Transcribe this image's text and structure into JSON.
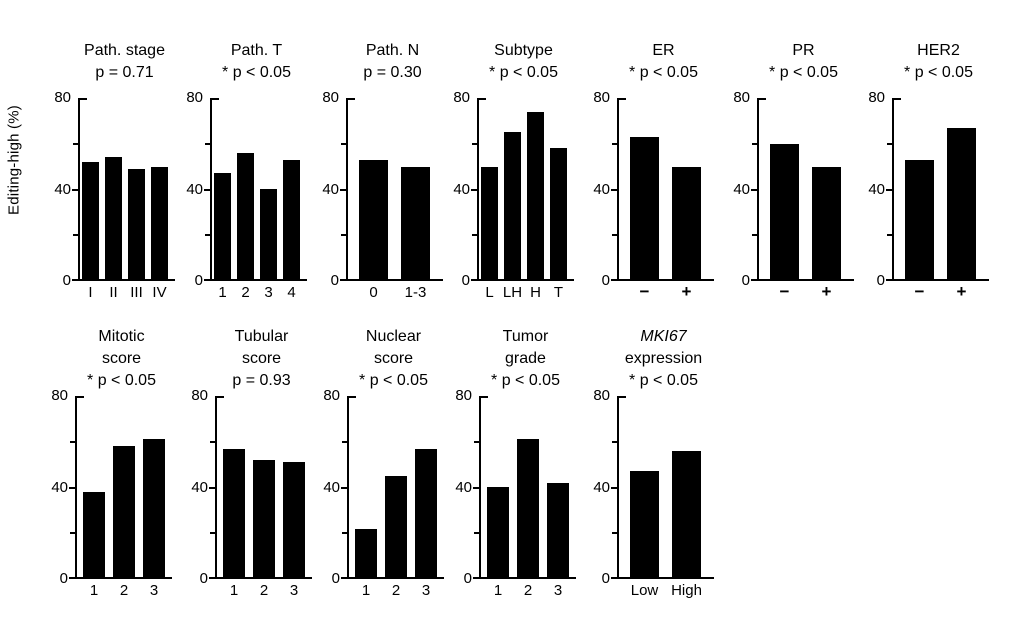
{
  "figure": {
    "background": "#ffffff",
    "bar_color": "#000000",
    "axis_color": "#000000",
    "text_color": "#000000"
  },
  "chart_data": {
    "type": "bar",
    "ylabel": "Editing-high (%)",
    "ylim": [
      0,
      80
    ],
    "yticks": [
      0,
      40,
      80
    ],
    "minor_yticks": [
      20,
      60
    ],
    "grid": false,
    "legend": "none",
    "panels": [
      {
        "id": "path-stage",
        "row": 1,
        "title_lines": [
          "Path. stage"
        ],
        "p_label": "p = 0.71",
        "significant": false,
        "categories": [
          "I",
          "II",
          "III",
          "IV"
        ],
        "values": [
          52,
          54,
          49,
          50
        ]
      },
      {
        "id": "path-t",
        "row": 1,
        "title_lines": [
          "Path. T"
        ],
        "p_label": "* p < 0.05",
        "significant": true,
        "categories": [
          "1",
          "2",
          "3",
          "4"
        ],
        "values": [
          47,
          56,
          40,
          53
        ]
      },
      {
        "id": "path-n",
        "row": 1,
        "title_lines": [
          "Path. N"
        ],
        "p_label": "p = 0.30",
        "significant": false,
        "categories": [
          "0",
          "1-3"
        ],
        "values": [
          53,
          50
        ]
      },
      {
        "id": "subtype",
        "row": 1,
        "title_lines": [
          "Subtype"
        ],
        "p_label": "* p < 0.05",
        "significant": true,
        "categories": [
          "L",
          "LH",
          "H",
          "T"
        ],
        "values": [
          50,
          65,
          74,
          58
        ]
      },
      {
        "id": "er",
        "row": 1,
        "title_lines": [
          "ER"
        ],
        "p_label": "* p < 0.05",
        "significant": true,
        "categories": [
          "−",
          "+"
        ],
        "categories_bold": true,
        "values": [
          63,
          50
        ]
      },
      {
        "id": "pr",
        "row": 1,
        "title_lines": [
          "PR"
        ],
        "p_label": "* p < 0.05",
        "significant": true,
        "categories": [
          "−",
          "+"
        ],
        "categories_bold": true,
        "values": [
          60,
          50
        ]
      },
      {
        "id": "her2",
        "row": 1,
        "title_lines": [
          "HER2"
        ],
        "p_label": "* p < 0.05",
        "significant": true,
        "categories": [
          "−",
          "+"
        ],
        "categories_bold": true,
        "values": [
          53,
          67
        ]
      },
      {
        "id": "mitotic-score",
        "row": 2,
        "title_lines": [
          "Mitotic",
          "score"
        ],
        "p_label": "* p < 0.05",
        "significant": true,
        "categories": [
          "1",
          "2",
          "3"
        ],
        "values": [
          38,
          58,
          61
        ]
      },
      {
        "id": "tubular-score",
        "row": 2,
        "title_lines": [
          "Tubular",
          "score"
        ],
        "p_label": "p = 0.93",
        "significant": false,
        "categories": [
          "1",
          "2",
          "3"
        ],
        "values": [
          57,
          52,
          51
        ]
      },
      {
        "id": "nuclear-score",
        "row": 2,
        "title_lines": [
          "Nuclear",
          "score"
        ],
        "p_label": "* p < 0.05",
        "significant": true,
        "categories": [
          "1",
          "2",
          "3"
        ],
        "values": [
          22,
          45,
          57
        ]
      },
      {
        "id": "tumor-grade",
        "row": 2,
        "title_lines": [
          "Tumor",
          "grade"
        ],
        "p_label": "* p < 0.05",
        "significant": true,
        "categories": [
          "1",
          "2",
          "3"
        ],
        "values": [
          40,
          61,
          42
        ]
      },
      {
        "id": "mki67-expression",
        "row": 2,
        "title_lines": [
          "MKI67",
          "expression"
        ],
        "italic_lines": [
          0
        ],
        "p_label": "* p < 0.05",
        "significant": true,
        "categories": [
          "Low",
          "High"
        ],
        "values": [
          47,
          56
        ]
      }
    ]
  }
}
